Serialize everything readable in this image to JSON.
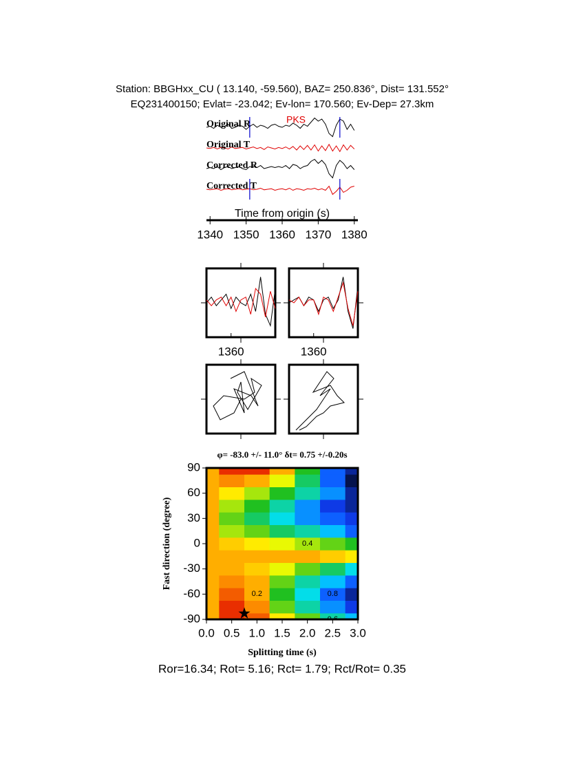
{
  "header": {
    "line1": "Station: BBGHxx_CU (  13.140,  -59.560), BAZ=  250.836°, Dist=  131.552°",
    "line2": "EQ231400150; Evlat= -23.042; Ev-lon= 170.560; Ev-Dep= 27.3km"
  },
  "chart_data": [
    {
      "type": "traces",
      "phase_label": "PKS",
      "xlabel": "Time from origin (s)",
      "xlim": [
        1339,
        1381
      ],
      "xticks": [
        1340,
        1350,
        1360,
        1370,
        1380
      ],
      "markers": [
        1351,
        1376
      ],
      "x": [
        1339,
        1340,
        1341,
        1342,
        1343,
        1344,
        1345,
        1346,
        1347,
        1348,
        1349,
        1350,
        1351,
        1352,
        1353,
        1354,
        1355,
        1356,
        1357,
        1358,
        1359,
        1360,
        1361,
        1362,
        1363,
        1364,
        1365,
        1366,
        1367,
        1368,
        1369,
        1370,
        1371,
        1372,
        1373,
        1374,
        1375,
        1376,
        1377,
        1378,
        1379,
        1380
      ],
      "series": [
        {
          "name": "Original R",
          "color": "#000000",
          "values": [
            0,
            0.1,
            -0.1,
            0.2,
            0,
            0.1,
            0.3,
            -0.1,
            0,
            0.2,
            0.1,
            -0.2,
            0.1,
            0.3,
            0,
            0.2,
            0.1,
            -0.1,
            0.2,
            0.3,
            0.1,
            0,
            0.2,
            0.1,
            0.4,
            0.2,
            -0.1,
            0.3,
            0.1,
            0.5,
            0.9,
            0.6,
            0.8,
            0.3,
            -0.6,
            -0.9,
            0.2,
            0.8,
            0.6,
            -0.2,
            0.3,
            -0.3
          ]
        },
        {
          "name": "Original T",
          "color": "#e00000",
          "values": [
            0,
            -0.05,
            0.05,
            -0.1,
            0.05,
            0,
            -0.1,
            0.1,
            -0.05,
            0,
            0.05,
            -0.1,
            0,
            0.1,
            -0.05,
            0.05,
            -0.15,
            0.1,
            0,
            -0.1,
            0.05,
            -0.05,
            0.1,
            -0.1,
            0.15,
            -0.2,
            0.2,
            -0.15,
            0.25,
            -0.2,
            0.3,
            -0.3,
            0.2,
            -0.25,
            0.35,
            -0.3,
            0.2,
            -0.35,
            0.3,
            -0.2,
            0.25,
            -0.1
          ]
        },
        {
          "name": "Corrected R",
          "color": "#000000",
          "values": [
            0,
            0.1,
            0,
            0.2,
            -0.1,
            0.1,
            0.2,
            0,
            0.1,
            0.2,
            0,
            -0.1,
            0.2,
            0.2,
            0.1,
            0.3,
            0,
            0.1,
            0.2,
            0.1,
            0.2,
            0.1,
            0.3,
            0,
            0.4,
            0.3,
            0,
            0.2,
            0.3,
            0.7,
            0.9,
            0.5,
            0.8,
            0.4,
            -0.5,
            -0.9,
            0.3,
            0.8,
            0.5,
            0,
            0.3,
            -0.1
          ]
        },
        {
          "name": "Corrected T",
          "color": "#e00000",
          "values": [
            0,
            -0.05,
            0,
            0.05,
            -0.1,
            0,
            0.05,
            -0.05,
            0,
            0.05,
            -0.05,
            0,
            0.05,
            -0.05,
            0,
            0.1,
            -0.05,
            0,
            0.05,
            -0.1,
            0,
            0.05,
            -0.05,
            0.1,
            -0.1,
            0.05,
            0,
            -0.1,
            0.05,
            0,
            0.1,
            -0.05,
            0.05,
            -0.1,
            0.3,
            -0.5,
            -0.2,
            0.2,
            -0.3,
            -0.1,
            0.2,
            0.3
          ]
        }
      ]
    },
    {
      "type": "line",
      "xlim": [
        1350,
        1378
      ],
      "ylim": [
        -1.2,
        1.2
      ],
      "xticks": [
        1360
      ],
      "x": [
        1350,
        1352,
        1354,
        1356,
        1358,
        1360,
        1362,
        1364,
        1366,
        1368,
        1370,
        1372,
        1374,
        1376,
        1378
      ],
      "series": [
        {
          "color": "#000000",
          "values": [
            0,
            0.2,
            -0.1,
            0.1,
            0.3,
            -0.2,
            0.2,
            0,
            -0.1,
            0.3,
            -0.3,
            0.9,
            -0.4,
            -0.8,
            0.5
          ]
        },
        {
          "color": "#e00000",
          "values": [
            0.1,
            -0.1,
            0.1,
            0.2,
            -0.1,
            0.2,
            -0.3,
            0.1,
            0.2,
            -0.4,
            0.5,
            0.3,
            -0.5,
            0.4,
            -0.2
          ]
        }
      ]
    },
    {
      "type": "line",
      "xlim": [
        1350,
        1378
      ],
      "ylim": [
        -1.2,
        1.2
      ],
      "xticks": [
        1360
      ],
      "x": [
        1350,
        1352,
        1354,
        1356,
        1358,
        1360,
        1362,
        1364,
        1366,
        1368,
        1370,
        1372,
        1374,
        1376,
        1378
      ],
      "series": [
        {
          "color": "#000000",
          "values": [
            0,
            0.1,
            0.2,
            -0.1,
            0.2,
            0.1,
            -0.3,
            0.1,
            0.2,
            -0.2,
            0.1,
            0.9,
            -0.3,
            -0.9,
            0.6
          ]
        },
        {
          "color": "#e00000",
          "values": [
            0.1,
            0,
            0.2,
            -0.1,
            0.1,
            0.1,
            -0.4,
            0.2,
            0.1,
            -0.3,
            0.2,
            0.7,
            -0.2,
            -0.8,
            0.4
          ]
        }
      ]
    },
    {
      "type": "line",
      "xlim": [
        -1,
        1
      ],
      "ylim": [
        -1,
        1
      ],
      "series": [
        {
          "color": "#000000",
          "x": [
            0,
            -0.2,
            -0.6,
            -0.8,
            -0.5,
            0.1,
            0.4,
            0.3,
            0.6,
            0.2,
            -0.1,
            0,
            0.1,
            -0.2,
            0.3,
            0.5,
            0.1,
            -0.3
          ],
          "values": [
            0,
            -0.4,
            -0.6,
            -0.2,
            0.1,
            0,
            0.2,
            0.6,
            0.4,
            -0.3,
            0.2,
            0.5,
            -0.4,
            0.3,
            0.1,
            -0.2,
            0.8,
            0.6
          ]
        }
      ]
    },
    {
      "type": "line",
      "xlim": [
        -1,
        1
      ],
      "ylim": [
        -1,
        1
      ],
      "series": [
        {
          "color": "#000000",
          "x": [
            -0.8,
            -0.6,
            -0.4,
            -0.2,
            0,
            0.2,
            -0.1,
            0.3,
            0.1,
            -0.3,
            0.2,
            0.4,
            0.6,
            0.2,
            0,
            -0.2,
            -0.5,
            -0.7
          ],
          "values": [
            -0.9,
            -0.7,
            -0.5,
            -0.3,
            0,
            0.3,
            0.1,
            0.6,
            0.8,
            0.2,
            0.4,
            0.1,
            -0.1,
            -0.2,
            -0.4,
            -0.5,
            -0.8,
            -0.9
          ]
        }
      ]
    },
    {
      "type": "heatmap",
      "title": "φ= -83.0 +/- 11.0° δt= 0.75 +/-0.20s",
      "xlabel": "Splitting time (s)",
      "ylabel": "Fast direction (degree)",
      "xlim": [
        0,
        3
      ],
      "ylim": [
        -90,
        90
      ],
      "zlim": [
        0,
        1
      ],
      "xticks": [
        {
          "value": 0,
          "label": "0.0"
        },
        0.5,
        {
          "value": 1,
          "label": "1.0"
        },
        1.5,
        {
          "value": 2,
          "label": "2.0"
        },
        2.5,
        {
          "value": 3,
          "label": "3.0"
        }
      ],
      "yticks": [
        -90,
        -60,
        -30,
        0,
        30,
        60,
        90
      ],
      "colormap": [
        "#e00000",
        "#ff9a00",
        "#ffff00",
        "#20c020",
        "#00e0ff",
        "#1040ff",
        "#000000"
      ],
      "contour_levels": [
        0.2,
        0.4,
        0.6,
        0.8
      ],
      "x": [
        0,
        0.5,
        1,
        1.5,
        2,
        2.5,
        3
      ],
      "y": [
        -90,
        -75,
        -60,
        -45,
        -30,
        -15,
        0,
        15,
        30,
        45,
        60,
        75,
        90
      ],
      "z": [
        [
          0.2,
          0.05,
          0.1,
          0.3,
          0.45,
          0.6,
          0.7
        ],
        [
          0.2,
          0.05,
          0.15,
          0.45,
          0.6,
          0.75,
          0.85
        ],
        [
          0.2,
          0.1,
          0.2,
          0.5,
          0.65,
          0.8,
          0.9
        ],
        [
          0.2,
          0.15,
          0.2,
          0.45,
          0.6,
          0.7,
          0.8
        ],
        [
          0.2,
          0.2,
          0.25,
          0.35,
          0.45,
          0.55,
          0.65
        ],
        [
          0.2,
          0.2,
          0.2,
          0.2,
          0.2,
          0.25,
          0.3
        ],
        [
          0.2,
          0.25,
          0.3,
          0.35,
          0.4,
          0.45,
          0.5
        ],
        [
          0.2,
          0.4,
          0.45,
          0.55,
          0.6,
          0.7,
          0.8
        ],
        [
          0.2,
          0.45,
          0.55,
          0.65,
          0.75,
          0.8,
          0.85
        ],
        [
          0.2,
          0.4,
          0.5,
          0.6,
          0.75,
          0.85,
          0.9
        ],
        [
          0.2,
          0.3,
          0.4,
          0.5,
          0.6,
          0.75,
          0.9
        ],
        [
          0.2,
          0.15,
          0.2,
          0.35,
          0.55,
          0.8,
          0.95
        ],
        [
          0.2,
          0.05,
          0.05,
          0.2,
          0.5,
          0.8,
          0.9
        ]
      ],
      "best_fit": {
        "dt": 0.75,
        "phi": -83
      }
    }
  ],
  "footer": "Ror=16.34; Rot= 5.16; Rct= 1.79; Rct/Rot= 0.35"
}
